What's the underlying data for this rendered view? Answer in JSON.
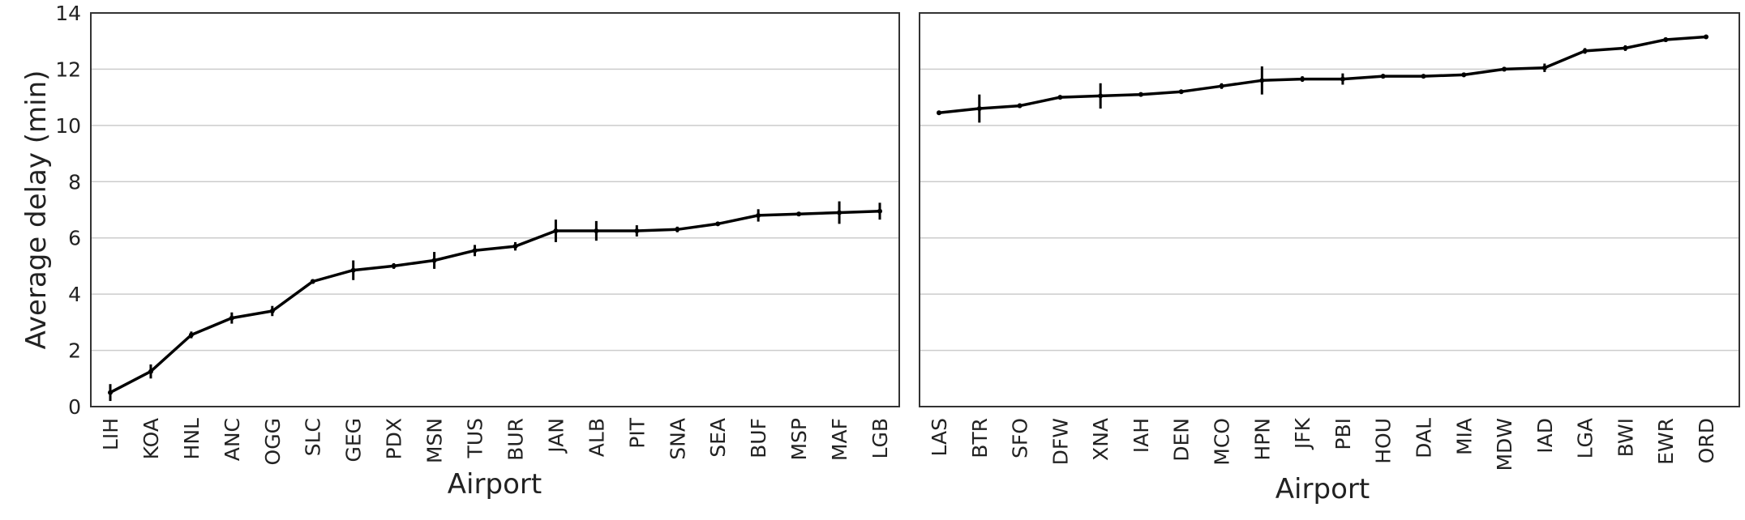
{
  "colors": {
    "line": "#000000",
    "grid": "#cccccc",
    "frame": "#333333",
    "text": "#222222"
  },
  "chart_data": [
    {
      "type": "line",
      "xlabel": "Airport",
      "ylabel": "Average delay (min)",
      "ylim": [
        0,
        14
      ],
      "yticks": [
        0,
        2,
        4,
        6,
        8,
        10,
        12,
        14
      ],
      "grid": true,
      "categories": [
        "LIH",
        "KOA",
        "HNL",
        "ANC",
        "OGG",
        "SLC",
        "GEG",
        "PDX",
        "MSN",
        "TUS",
        "BUR",
        "JAN",
        "ALB",
        "PIT",
        "SNA",
        "SEA",
        "BUF",
        "MSP",
        "MAF",
        "LGB"
      ],
      "values": [
        0.5,
        1.25,
        2.55,
        3.15,
        3.4,
        4.45,
        4.85,
        5.0,
        5.2,
        5.55,
        5.7,
        6.25,
        6.25,
        6.25,
        6.3,
        6.5,
        6.8,
        6.85,
        6.9,
        6.95
      ],
      "errors": [
        0.3,
        0.25,
        0.12,
        0.2,
        0.18,
        0.08,
        0.35,
        0.1,
        0.3,
        0.2,
        0.15,
        0.4,
        0.35,
        0.2,
        0.1,
        0.05,
        0.22,
        0.08,
        0.4,
        0.3
      ]
    },
    {
      "type": "line",
      "xlabel": "Airport",
      "ylim": [
        0,
        14
      ],
      "grid": true,
      "categories": [
        "LAS",
        "BTR",
        "SFO",
        "DFW",
        "XNA",
        "IAH",
        "DEN",
        "MCO",
        "HPN",
        "JFK",
        "PBI",
        "HOU",
        "DAL",
        "MIA",
        "MDW",
        "IAD",
        "LGA",
        "BWI",
        "EWR",
        "ORD"
      ],
      "values": [
        10.45,
        10.6,
        10.7,
        11.0,
        11.05,
        11.1,
        11.2,
        11.4,
        11.6,
        11.65,
        11.65,
        11.75,
        11.75,
        11.8,
        12.0,
        12.05,
        12.65,
        12.75,
        13.05,
        13.15
      ],
      "errors": [
        0.08,
        0.5,
        0.08,
        0.05,
        0.45,
        0.07,
        0.06,
        0.1,
        0.5,
        0.1,
        0.2,
        0.08,
        0.06,
        0.08,
        0.08,
        0.15,
        0.1,
        0.1,
        0.08,
        0.06
      ]
    }
  ]
}
